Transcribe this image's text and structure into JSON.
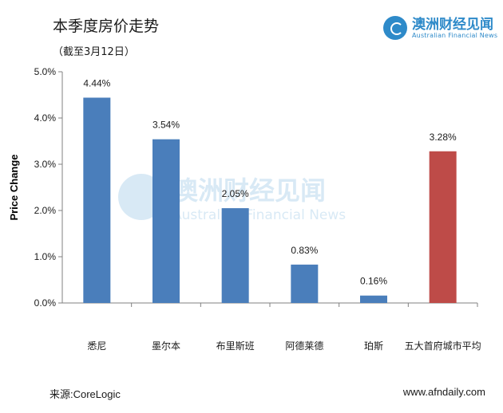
{
  "header": {
    "title": "本季度房价走势",
    "subtitle": "（截至3月12日）"
  },
  "brand": {
    "name_cn": "澳洲财经见闻",
    "name_en": "Australian Financial News",
    "logo_text": "AFN",
    "color": "#2e8ac9"
  },
  "footer": {
    "source": "来源:CoreLogic",
    "website": "www.afndaily.com"
  },
  "chart_data": {
    "type": "bar",
    "categories": [
      "悉尼",
      "墨尔本",
      "布里斯班",
      "阿德莱德",
      "珀斯",
      "五大首府城市平均"
    ],
    "values": [
      4.44,
      3.54,
      2.05,
      0.83,
      0.16,
      3.28
    ],
    "data_labels": [
      "4.44%",
      "3.54%",
      "2.05%",
      "0.83%",
      "0.16%",
      "3.28%"
    ],
    "colors": [
      "#4a7ebb",
      "#4a7ebb",
      "#4a7ebb",
      "#4a7ebb",
      "#4a7ebb",
      "#be4b48"
    ],
    "ylabel": "Price Change",
    "xlabel": "",
    "ylim": [
      0,
      5
    ],
    "yticks": [
      0,
      1,
      2,
      3,
      4,
      5
    ],
    "ytick_labels": [
      "0.0%",
      "1.0%",
      "2.0%",
      "3.0%",
      "4.0%",
      "5.0%"
    ],
    "grid": false,
    "legend": "none"
  }
}
